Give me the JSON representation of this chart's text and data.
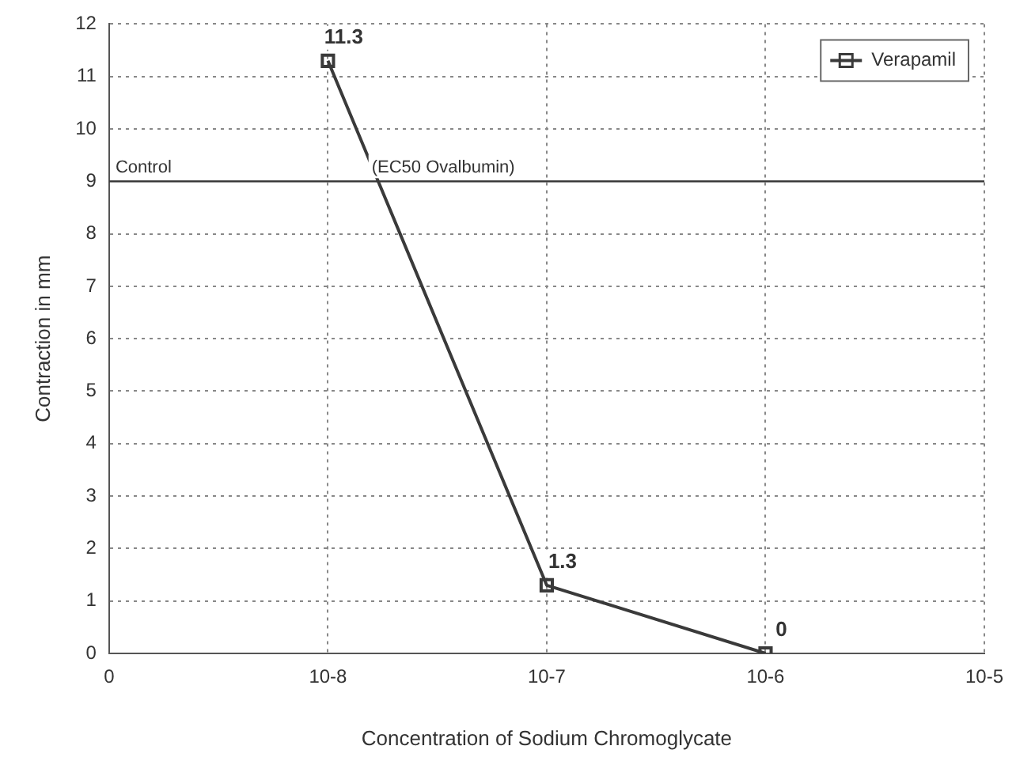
{
  "chart_data": {
    "type": "line",
    "xlabel": "Concentration of Sodium Chromoglycate",
    "ylabel": "Contraction in mm",
    "categories": [
      "0",
      "10-8",
      "10-7",
      "10-6",
      "10-5"
    ],
    "series": [
      {
        "name": "Verapamil",
        "color": "#3a3a3a",
        "values": [
          null,
          11.3,
          1.3,
          0,
          null
        ]
      }
    ],
    "ylim": [
      0,
      12
    ],
    "yticks": [
      0,
      1,
      2,
      3,
      4,
      5,
      6,
      7,
      8,
      9,
      10,
      11,
      12
    ],
    "ref_lines": [
      {
        "axis": "y",
        "value": 9,
        "label": "Control",
        "color": "#3a3a3a"
      }
    ],
    "annotations": [
      "(EC50 Ovalbumin)"
    ],
    "data_labels": true,
    "grid": true,
    "legend": "top right",
    "marker": "square",
    "line_style": "solid"
  }
}
